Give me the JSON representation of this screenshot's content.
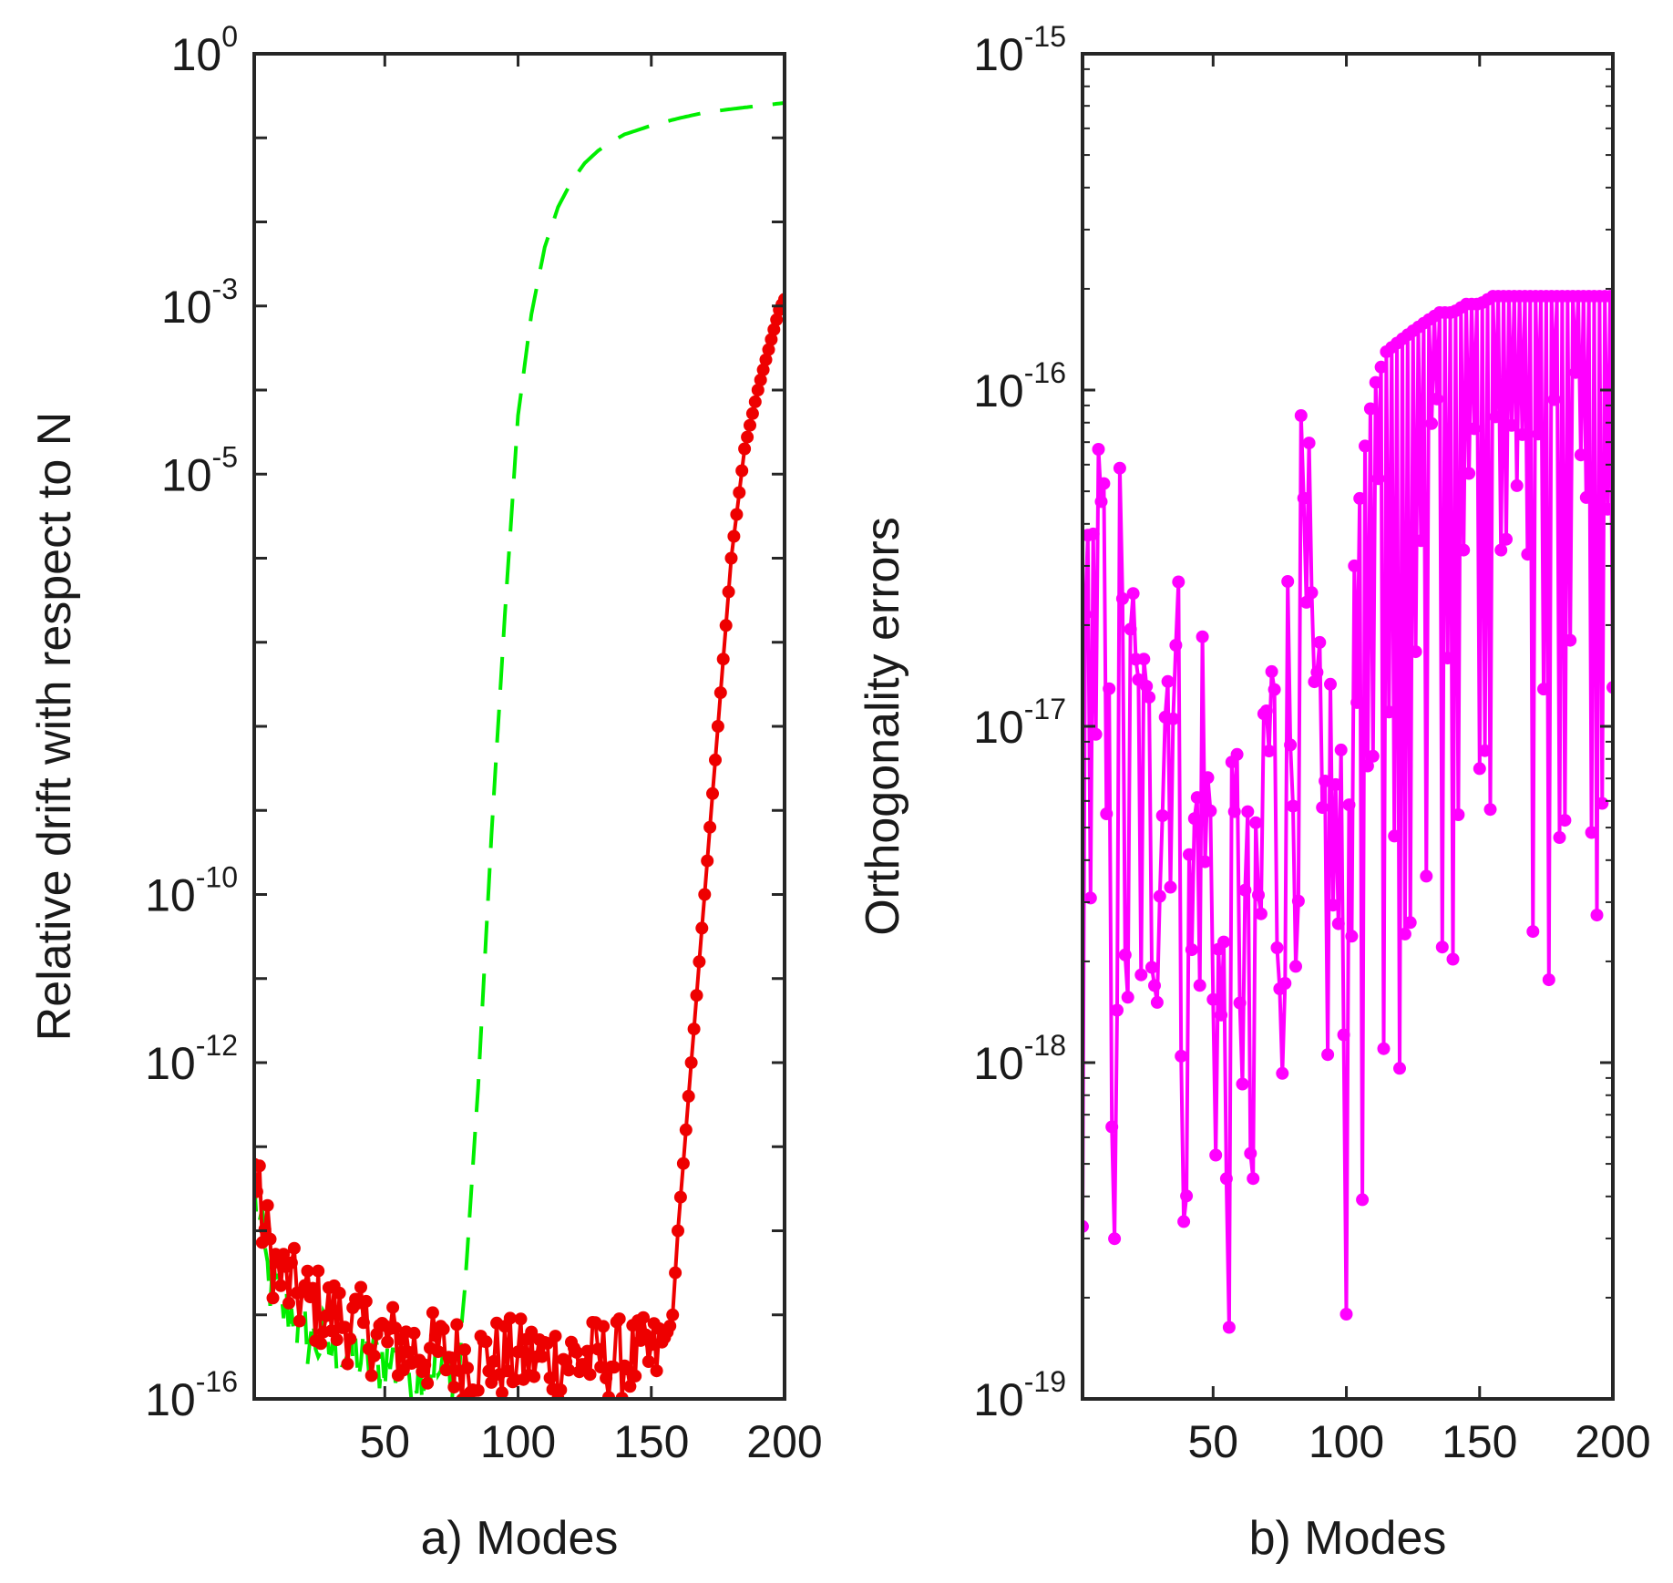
{
  "chart_data": [
    {
      "type": "line",
      "panel": "a",
      "xlabel": "a) Modes",
      "ylabel": "Relative drift with respect to N",
      "yscale": "log",
      "xlim": [
        1,
        200
      ],
      "ylim": [
        1e-16,
        1
      ],
      "xticks": [
        50,
        100,
        150,
        200
      ],
      "xtick_labels": [
        "50",
        "100",
        "150",
        "200"
      ],
      "yticks": [
        {
          "value": 1,
          "base": "10",
          "exp": "0"
        },
        {
          "value": 0.001,
          "base": "10",
          "exp": "-3"
        },
        {
          "value": 1e-05,
          "base": "10",
          "exp": "-5"
        },
        {
          "value": 1e-10,
          "base": "10",
          "exp": "-10"
        },
        {
          "value": 1e-12,
          "base": "10",
          "exp": "-12"
        },
        {
          "value": 1e-16,
          "base": "10",
          "exp": "-16"
        }
      ],
      "series": [
        {
          "name": "dashed green",
          "color": "#00ee00",
          "style": "dashed",
          "anchor_points": {
            "x": [
              1,
              3,
              6,
              10,
              15,
              20,
              25,
              30,
              35,
              40,
              45,
              50,
              55,
              60,
              65,
              70,
              75,
              78,
              80,
              85,
              90,
              95,
              100,
              105,
              110,
              115,
              120,
              125,
              130,
              135,
              140,
              150,
              160,
              170,
              180,
              190,
              200
            ],
            "y": [
              3e-14,
              1e-14,
              3e-15,
              1.5e-15,
              1e-15,
              6e-16,
              5e-16,
              4e-16,
              3.5e-16,
              3e-16,
              3e-16,
              3e-16,
              2.5e-16,
              2.5e-16,
              2.5e-16,
              2e-16,
              2e-16,
              2e-16,
              2e-15,
              5e-13,
              5e-10,
              2e-07,
              5e-05,
              0.0008,
              0.005,
              0.015,
              0.03,
              0.05,
              0.07,
              0.09,
              0.11,
              0.14,
              0.17,
              0.2,
              0.22,
              0.24,
              0.26
            ]
          }
        },
        {
          "name": "red markers",
          "color": "#ee0000",
          "style": "solid-dots",
          "anchor_points": {
            "x": [
              1,
              2,
              5,
              10,
              20,
              30,
              40,
              50,
              60,
              70,
              80,
              90,
              100,
              110,
              120,
              130,
              140,
              150,
              155,
              158,
              160,
              165,
              170,
              175,
              180,
              185,
              190,
              195,
              198,
              200
            ],
            "y": [
              1e-13,
              3e-14,
              1e-14,
              3e-15,
              1.5e-15,
              1e-15,
              7e-16,
              5e-16,
              4e-16,
              3.5e-16,
              3e-16,
              3e-16,
              3e-16,
              3e-16,
              3e-16,
              3e-16,
              3e-16,
              3e-16,
              4e-16,
              1e-15,
              1e-14,
              1e-12,
              1e-10,
              1e-08,
              1e-06,
              2e-05,
              0.0001,
              0.0004,
              0.0009,
              0.0012
            ]
          }
        }
      ]
    },
    {
      "type": "line",
      "panel": "b",
      "xlabel": "b) Modes",
      "ylabel": "Orthogonality errors",
      "yscale": "log",
      "xlim": [
        1,
        200
      ],
      "ylim": [
        1e-19,
        1e-15
      ],
      "xticks": [
        50,
        100,
        150,
        200
      ],
      "xtick_labels": [
        "50",
        "100",
        "150",
        "200"
      ],
      "yticks": [
        {
          "value": 1e-15,
          "base": "10",
          "exp": "-15"
        },
        {
          "value": 1e-16,
          "base": "10",
          "exp": "-16"
        },
        {
          "value": 1e-17,
          "base": "10",
          "exp": "-17"
        },
        {
          "value": 1e-18,
          "base": "10",
          "exp": "-18"
        },
        {
          "value": 1e-19,
          "base": "10",
          "exp": "-19"
        }
      ],
      "series": [
        {
          "name": "magenta markers",
          "color": "#ff00ff",
          "style": "solid-dots",
          "anchor_points": {
            "x": [
              1,
              3,
              5,
              8,
              10,
              13,
              15,
              18,
              20,
              25,
              30,
              35,
              40,
              45,
              50,
              55,
              60,
              65,
              70,
              75,
              80,
              85,
              90,
              95,
              100,
              103,
              106,
              110,
              115,
              120,
              125,
              130,
              135,
              140,
              145,
              150,
              155,
              160,
              165,
              170,
              175,
              180,
              185,
              190,
              195,
              200
            ],
            "y": [
              1.5e-18,
              1.5e-17,
              2.1e-17,
              2e-17,
              5e-18,
              1.2e-18,
              1.3e-17,
              3e-18,
              9e-18,
              4e-18,
              8e-18,
              2e-17,
              1e-18,
              7e-18,
              3e-18,
              6e-19,
              4e-18,
              5e-19,
              1e-17,
              4e-18,
              1.1e-17,
              1.7e-17,
              3e-18,
              5e-18,
              1e-18,
              3e-17,
              6e-17,
              1e-16,
              1.3e-16,
              1.4e-16,
              1.5e-16,
              1.6e-16,
              1.7e-16,
              1.7e-16,
              1.8e-16,
              1.8e-16,
              1.9e-16,
              1.9e-16,
              1.9e-16,
              1.9e-16,
              1.9e-16,
              1.9e-16,
              1.9e-16,
              1.9e-16,
              1.9e-16,
              1.9e-16
            ]
          }
        }
      ]
    }
  ]
}
